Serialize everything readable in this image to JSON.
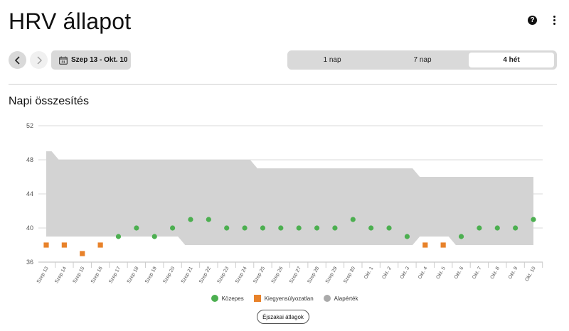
{
  "header": {
    "title": "HRV állapot",
    "help_symbol": "?",
    "icons": {
      "help": "help-circle-icon",
      "more": "more-vertical-icon"
    }
  },
  "toolbar": {
    "prev_icon": "chevron-left-icon",
    "next_icon": "chevron-right-icon",
    "calendar_icon": "calendar-icon",
    "calendar_day": "31",
    "date_range": "Szep 13 - Okt. 10",
    "tabs": [
      {
        "label": "1 nap",
        "active": false
      },
      {
        "label": "7 nap",
        "active": false
      },
      {
        "label": "4 hét",
        "active": true
      }
    ]
  },
  "section": {
    "title": "Napi összesítés"
  },
  "colors": {
    "balanced": "#4caf50",
    "unbalanced": "#e8822a",
    "baseline": "#d3d3d3",
    "grid": "#d8d8d8",
    "axis_text": "#555555",
    "tab_bg": "#d9d9d9"
  },
  "chart_data": {
    "type": "scatter",
    "title": "",
    "xlabel": "",
    "ylabel": "",
    "ylim": [
      36,
      52
    ],
    "yticks": [
      36,
      40,
      44,
      48,
      52
    ],
    "grid": true,
    "legend_position": "bottom",
    "categories": [
      "Szep 13",
      "Szep 14",
      "Szep 15",
      "Szep 16",
      "Szep 17",
      "Szep 18",
      "Szep 19",
      "Szep 20",
      "Szep 21",
      "Szep 22",
      "Szep 23",
      "Szep 24",
      "Szep 25",
      "Szep 26",
      "Szep 27",
      "Szep 28",
      "Szep 29",
      "Szep 30",
      "Okt. 1",
      "Okt. 2",
      "Okt. 3",
      "Okt. 4",
      "Okt. 5",
      "Okt. 6",
      "Okt. 7",
      "Okt. 8",
      "Okt. 9",
      "Okt. 10"
    ],
    "values": [
      38,
      38,
      37,
      38,
      39,
      40,
      39,
      40,
      41,
      41,
      40,
      40,
      40,
      40,
      40,
      40,
      40,
      41,
      40,
      40,
      39,
      38,
      38,
      39,
      40,
      40,
      40,
      41
    ],
    "status": [
      "unbalanced",
      "unbalanced",
      "unbalanced",
      "unbalanced",
      "balanced",
      "balanced",
      "balanced",
      "balanced",
      "balanced",
      "balanced",
      "balanced",
      "balanced",
      "balanced",
      "balanced",
      "balanced",
      "balanced",
      "balanced",
      "balanced",
      "balanced",
      "balanced",
      "balanced",
      "unbalanced",
      "unbalanced",
      "balanced",
      "balanced",
      "balanced",
      "balanced",
      "balanced"
    ],
    "baseline_upper": [
      49,
      48,
      48,
      48,
      48,
      48,
      48,
      48,
      48,
      48,
      48,
      48,
      47,
      47,
      47,
      47,
      47,
      47,
      47,
      47,
      47,
      46,
      46,
      46,
      46,
      46,
      46,
      46
    ],
    "baseline_lower": [
      39,
      39,
      39,
      39,
      39,
      39,
      39,
      39,
      38,
      38,
      38,
      38,
      38,
      38,
      38,
      38,
      38,
      38,
      38,
      38,
      38,
      39,
      39,
      38,
      38,
      38,
      38,
      38
    ]
  },
  "legend": [
    {
      "label": "Közepes",
      "shape": "circle",
      "color": "#4caf50"
    },
    {
      "label": "Kiegyensúlyozatlan",
      "shape": "square",
      "color": "#e8822a"
    },
    {
      "label": "Alapérték",
      "shape": "circle",
      "color": "#aaaaaa"
    }
  ],
  "footer": {
    "averages_button": "Éjszakai átlagok"
  }
}
